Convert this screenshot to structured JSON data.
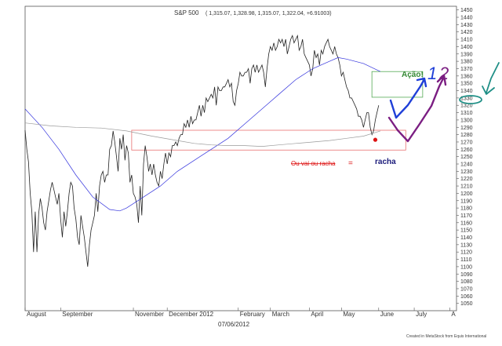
{
  "chart_data": {
    "type": "line",
    "title": "S&P 500",
    "ohlc_readout": "( 1,315.07, 1,328.98, 1,315.07, 1,322.04, +6.91003)",
    "date_caption": "07/06/2012",
    "footer_credit": "Created in MetaStock from Equis International",
    "ylim": [
      1040,
      1455
    ],
    "yticks": [
      1050,
      1060,
      1070,
      1080,
      1090,
      1100,
      1110,
      1120,
      1130,
      1140,
      1150,
      1160,
      1170,
      1180,
      1190,
      1200,
      1210,
      1220,
      1230,
      1240,
      1250,
      1260,
      1270,
      1280,
      1290,
      1300,
      1310,
      1320,
      1330,
      1340,
      1350,
      1360,
      1370,
      1380,
      1390,
      1400,
      1410,
      1420,
      1430,
      1440,
      1450
    ],
    "xticks": [
      {
        "label": "August",
        "i": 0
      },
      {
        "label": "September",
        "i": 21
      },
      {
        "label": "November",
        "i": 64
      },
      {
        "label": "December 2012",
        "i": 84
      },
      {
        "label": "February",
        "i": 126
      },
      {
        "label": "March",
        "i": 145
      },
      {
        "label": "April",
        "i": 168
      },
      {
        "label": "May",
        "i": 187
      },
      {
        "label": "June",
        "i": 209
      },
      {
        "label": "July",
        "i": 230
      },
      {
        "label": "A",
        "i": 251
      }
    ],
    "n_slots": 255,
    "series": [
      {
        "name": "S&P 500",
        "color": "#222222",
        "points": [
          [
            0,
            1286
          ],
          [
            1,
            1260
          ],
          [
            2,
            1243
          ],
          [
            3,
            1200
          ],
          [
            4,
            1175
          ],
          [
            5,
            1120
          ],
          [
            6,
            1175
          ],
          [
            7,
            1120
          ],
          [
            8,
            1172
          ],
          [
            9,
            1193
          ],
          [
            10,
            1180
          ],
          [
            11,
            1160
          ],
          [
            12,
            1150
          ],
          [
            13,
            1175
          ],
          [
            14,
            1190
          ],
          [
            15,
            1205
          ],
          [
            16,
            1215
          ],
          [
            17,
            1205
          ],
          [
            18,
            1195
          ],
          [
            19,
            1185
          ],
          [
            20,
            1200
          ],
          [
            21,
            1165
          ],
          [
            22,
            1140
          ],
          [
            23,
            1175
          ],
          [
            24,
            1155
          ],
          [
            25,
            1175
          ],
          [
            26,
            1200
          ],
          [
            27,
            1215
          ],
          [
            28,
            1210
          ],
          [
            29,
            1180
          ],
          [
            30,
            1165
          ],
          [
            31,
            1140
          ],
          [
            32,
            1130
          ],
          [
            33,
            1170
          ],
          [
            34,
            1155
          ],
          [
            35,
            1140
          ],
          [
            36,
            1120
          ],
          [
            37,
            1100
          ],
          [
            38,
            1130
          ],
          [
            39,
            1150
          ],
          [
            40,
            1160
          ],
          [
            41,
            1170
          ],
          [
            42,
            1200
          ],
          [
            43,
            1175
          ],
          [
            44,
            1210
          ],
          [
            45,
            1225
          ],
          [
            46,
            1230
          ],
          [
            47,
            1215
          ],
          [
            48,
            1225
          ],
          [
            49,
            1225
          ],
          [
            50,
            1260
          ],
          [
            51,
            1265
          ],
          [
            52,
            1285
          ],
          [
            53,
            1270
          ],
          [
            54,
            1250
          ],
          [
            55,
            1230
          ],
          [
            56,
            1275
          ],
          [
            57,
            1260
          ],
          [
            58,
            1280
          ],
          [
            59,
            1245
          ],
          [
            60,
            1265
          ],
          [
            61,
            1255
          ],
          [
            62,
            1215
          ],
          [
            63,
            1225
          ],
          [
            64,
            1200
          ],
          [
            65,
            1195
          ],
          [
            66,
            1185
          ],
          [
            67,
            1160
          ],
          [
            68,
            1210
          ],
          [
            69,
            1170
          ],
          [
            70,
            1240
          ],
          [
            71,
            1265
          ],
          [
            72,
            1250
          ],
          [
            73,
            1230
          ],
          [
            74,
            1240
          ],
          [
            75,
            1225
          ],
          [
            76,
            1240
          ],
          [
            77,
            1225
          ],
          [
            78,
            1215
          ],
          [
            79,
            1210
          ],
          [
            80,
            1230
          ],
          [
            81,
            1220
          ],
          [
            82,
            1240
          ],
          [
            83,
            1255
          ],
          [
            84,
            1240
          ],
          [
            85,
            1255
          ],
          [
            86,
            1250
          ],
          [
            87,
            1265
          ],
          [
            88,
            1265
          ],
          [
            89,
            1270
          ],
          [
            90,
            1265
          ],
          [
            91,
            1275
          ],
          [
            92,
            1280
          ],
          [
            93,
            1280
          ],
          [
            94,
            1295
          ],
          [
            95,
            1290
          ],
          [
            96,
            1300
          ],
          [
            97,
            1290
          ],
          [
            98,
            1305
          ],
          [
            99,
            1295
          ],
          [
            100,
            1300
          ],
          [
            101,
            1300
          ],
          [
            102,
            1310
          ],
          [
            103,
            1320
          ],
          [
            104,
            1305
          ],
          [
            105,
            1320
          ],
          [
            106,
            1310
          ],
          [
            107,
            1330
          ],
          [
            108,
            1325
          ],
          [
            109,
            1330
          ],
          [
            110,
            1335
          ],
          [
            111,
            1330
          ],
          [
            112,
            1345
          ],
          [
            113,
            1320
          ],
          [
            114,
            1345
          ],
          [
            115,
            1340
          ],
          [
            116,
            1340
          ],
          [
            117,
            1345
          ],
          [
            118,
            1345
          ],
          [
            119,
            1350
          ],
          [
            120,
            1355
          ],
          [
            121,
            1345
          ],
          [
            122,
            1350
          ],
          [
            123,
            1325
          ],
          [
            124,
            1320
          ],
          [
            125,
            1340
          ],
          [
            126,
            1350
          ],
          [
            127,
            1365
          ],
          [
            128,
            1360
          ],
          [
            129,
            1360
          ],
          [
            130,
            1365
          ],
          [
            131,
            1365
          ],
          [
            132,
            1370
          ],
          [
            133,
            1350
          ],
          [
            134,
            1370
          ],
          [
            135,
            1375
          ],
          [
            136,
            1365
          ],
          [
            137,
            1375
          ],
          [
            138,
            1365
          ],
          [
            139,
            1370
          ],
          [
            140,
            1375
          ],
          [
            141,
            1365
          ],
          [
            142,
            1345
          ],
          [
            143,
            1370
          ],
          [
            144,
            1390
          ],
          [
            145,
            1400
          ],
          [
            146,
            1395
          ],
          [
            147,
            1405
          ],
          [
            148,
            1395
          ],
          [
            149,
            1400
          ],
          [
            150,
            1410
          ],
          [
            151,
            1405
          ],
          [
            152,
            1410
          ],
          [
            153,
            1400
          ],
          [
            154,
            1410
          ],
          [
            155,
            1390
          ],
          [
            156,
            1400
          ],
          [
            157,
            1410
          ],
          [
            158,
            1415
          ],
          [
            159,
            1405
          ],
          [
            160,
            1410
          ],
          [
            161,
            1415
          ],
          [
            162,
            1395
          ],
          [
            163,
            1400
          ],
          [
            164,
            1410
          ],
          [
            165,
            1390
          ],
          [
            166,
            1385
          ],
          [
            167,
            1380
          ],
          [
            168,
            1375
          ],
          [
            169,
            1360
          ],
          [
            170,
            1370
          ],
          [
            171,
            1395
          ],
          [
            172,
            1385
          ],
          [
            173,
            1390
          ],
          [
            174,
            1375
          ],
          [
            175,
            1395
          ],
          [
            176,
            1390
          ],
          [
            177,
            1400
          ],
          [
            178,
            1405
          ],
          [
            179,
            1410
          ],
          [
            180,
            1400
          ],
          [
            181,
            1395
          ],
          [
            182,
            1390
          ],
          [
            183,
            1400
          ],
          [
            184,
            1390
          ],
          [
            185,
            1385
          ],
          [
            186,
            1375
          ],
          [
            187,
            1360
          ],
          [
            188,
            1365
          ],
          [
            189,
            1355
          ],
          [
            190,
            1345
          ],
          [
            191,
            1340
          ],
          [
            192,
            1330
          ],
          [
            193,
            1330
          ],
          [
            194,
            1325
          ],
          [
            195,
            1320
          ],
          [
            196,
            1315
          ],
          [
            197,
            1305
          ],
          [
            198,
            1305
          ],
          [
            199,
            1300
          ],
          [
            200,
            1290
          ],
          [
            201,
            1300
          ],
          [
            202,
            1310
          ],
          [
            203,
            1310
          ],
          [
            204,
            1290
          ],
          [
            205,
            1280
          ],
          [
            206,
            1285
          ],
          [
            207,
            1300
          ],
          [
            208,
            1310
          ],
          [
            209,
            1320
          ]
        ]
      },
      {
        "name": "Moving average (long)",
        "color": "#3333dd",
        "points": [
          [
            0,
            1315
          ],
          [
            10,
            1290
          ],
          [
            20,
            1260
          ],
          [
            30,
            1225
          ],
          [
            40,
            1195
          ],
          [
            50,
            1178
          ],
          [
            56,
            1176
          ],
          [
            60,
            1180
          ],
          [
            70,
            1195
          ],
          [
            80,
            1210
          ],
          [
            90,
            1230
          ],
          [
            100,
            1245
          ],
          [
            110,
            1260
          ],
          [
            120,
            1275
          ],
          [
            130,
            1295
          ],
          [
            140,
            1315
          ],
          [
            150,
            1335
          ],
          [
            160,
            1355
          ],
          [
            170,
            1370
          ],
          [
            180,
            1380
          ],
          [
            185,
            1385
          ],
          [
            190,
            1383
          ],
          [
            200,
            1377
          ],
          [
            210,
            1366
          ]
        ]
      },
      {
        "name": "Moving average (very long)",
        "color": "#9a9a9a",
        "points": [
          [
            0,
            1296
          ],
          [
            15,
            1292
          ],
          [
            30,
            1290
          ],
          [
            45,
            1289
          ],
          [
            60,
            1285
          ],
          [
            75,
            1278
          ],
          [
            90,
            1272
          ],
          [
            100,
            1268
          ],
          [
            110,
            1266
          ],
          [
            120,
            1265
          ],
          [
            130,
            1265
          ],
          [
            140,
            1264
          ],
          [
            150,
            1266
          ],
          [
            160,
            1268
          ],
          [
            170,
            1270
          ],
          [
            180,
            1272
          ],
          [
            190,
            1275
          ],
          [
            200,
            1278
          ],
          [
            210,
            1285
          ]
        ]
      }
    ],
    "annotations": {
      "support_box": {
        "i0": 63,
        "i1": 225,
        "y_top": 1286,
        "y_bottom": 1259,
        "color": "#e87070"
      },
      "target_box": {
        "i0": 205,
        "i1": 235,
        "y_top": 1366,
        "y_bottom": 1331,
        "color": "#55aa55"
      },
      "red_dot": {
        "i": 207,
        "y": 1273
      },
      "label_ou_vai": "Ou vai ou racha",
      "equals_sign": "=",
      "label_racha": "racha",
      "label_acao": "Ação!",
      "digit_one": "1",
      "digit_two": "2",
      "marked_level": "1330"
    }
  }
}
